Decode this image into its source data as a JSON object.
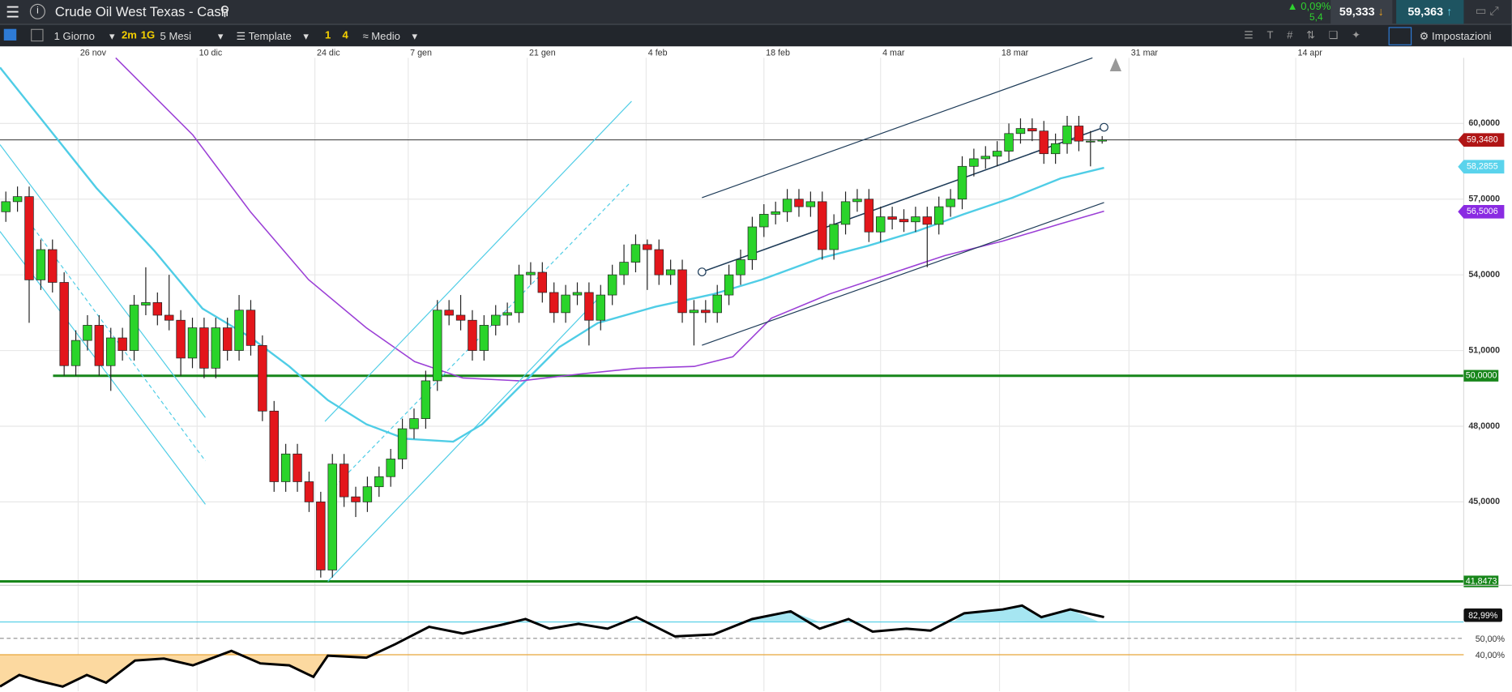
{
  "toolbar": {
    "title": "Crude Oil West Texas - Cash",
    "change": "0,09%",
    "change_points": "5,4",
    "sell": "59,333",
    "buy": "59,363",
    "interval": "1 Giorno",
    "btn_2m": "2m",
    "btn_1g": "1G",
    "range": "5 Mesi",
    "template": "Template",
    "btn_1": "1",
    "btn_4": "4",
    "style": "Medio",
    "settings": "Impostazioni"
  },
  "chart_data": {
    "type": "candlestick",
    "up_color": "#2ad42a",
    "down_color": "#e3161b",
    "xlim": [
      -0.5,
      125
    ],
    "xticks": [
      {
        "value": 6.2,
        "label": "26 nov"
      },
      {
        "value": 16.4,
        "label": "10 dic"
      },
      {
        "value": 26.5,
        "label": "24 dic"
      },
      {
        "value": 34.5,
        "label": "7 gen"
      },
      {
        "value": 44.7,
        "label": "21 gen"
      },
      {
        "value": 54.9,
        "label": "4 feb"
      },
      {
        "value": 65,
        "label": "18 feb"
      },
      {
        "value": 75,
        "label": "4 mar"
      },
      {
        "value": 85.2,
        "label": "18 mar"
      },
      {
        "value": 96.3,
        "label": "31 mar"
      },
      {
        "value": 110.6,
        "label": "14 apr"
      }
    ],
    "ylim": [
      41.77,
      62.6
    ],
    "yticks": [
      {
        "value": 60,
        "label": "60,0000"
      },
      {
        "value": 57,
        "label": "57,0000"
      },
      {
        "value": 54,
        "label": "54,0000"
      },
      {
        "value": 51,
        "label": "51,0000"
      },
      {
        "value": 48,
        "label": "48,0000"
      },
      {
        "value": 45,
        "label": "45,0000"
      }
    ],
    "open": [
      56.5,
      56.9,
      57.1,
      53.8,
      55.0,
      53.7,
      50.4,
      51.4,
      52.0,
      50.4,
      51.5,
      51.0,
      52.8,
      52.9,
      52.4,
      52.2,
      50.7,
      51.9,
      50.3,
      51.9,
      51.0,
      52.6,
      51.2,
      48.6,
      45.8,
      46.9,
      45.8,
      45.0,
      42.3,
      46.5,
      45.2,
      45.0,
      45.6,
      46.0,
      46.7,
      47.9,
      48.3,
      49.8,
      52.6,
      52.4,
      52.2,
      51.0,
      52.0,
      52.4,
      52.5,
      54.0,
      54.1,
      53.3,
      52.5,
      53.2,
      53.3,
      52.2,
      53.2,
      54.0,
      54.5,
      55.2,
      55.0,
      54.0,
      54.2,
      52.5,
      52.6,
      52.5,
      53.2,
      54.0,
      54.6,
      55.9,
      56.4,
      56.5,
      57.0,
      56.7,
      56.9,
      55.0,
      56.0,
      56.9,
      57.0,
      55.7,
      56.3,
      56.2,
      56.1,
      56.3,
      56.0,
      56.7,
      57.0,
      58.3,
      58.6,
      58.7,
      58.9,
      59.6,
      59.8,
      59.7,
      58.8,
      59.2,
      59.9,
      59.3,
      59.3
    ],
    "high": [
      57.3,
      57.5,
      57.5,
      55.4,
      55.4,
      54.1,
      51.8,
      52.4,
      52.4,
      51.9,
      51.9,
      53.2,
      54.3,
      53.3,
      54.0,
      52.6,
      52.3,
      52.3,
      52.3,
      52.3,
      53.2,
      53.0,
      51.6,
      49.0,
      47.3,
      47.3,
      46.2,
      45.4,
      46.9,
      46.9,
      45.6,
      46.0,
      46.4,
      47.1,
      48.3,
      48.7,
      50.2,
      53.0,
      53.0,
      53.2,
      52.6,
      52.4,
      52.8,
      52.9,
      54.4,
      54.5,
      54.5,
      53.7,
      53.6,
      53.7,
      53.7,
      53.6,
      54.4,
      55.2,
      55.6,
      55.4,
      55.4,
      54.6,
      54.6,
      53.0,
      53.0,
      53.6,
      54.4,
      55.0,
      56.3,
      56.8,
      56.9,
      57.4,
      57.4,
      57.3,
      57.3,
      56.4,
      57.3,
      57.4,
      57.4,
      56.7,
      56.7,
      56.6,
      56.7,
      56.7,
      57.1,
      57.4,
      58.7,
      59.0,
      59.1,
      59.3,
      60.0,
      60.2,
      60.2,
      60.1,
      59.6,
      60.3,
      60.3,
      59.7,
      59.5
    ],
    "low": [
      56.1,
      56.5,
      52.1,
      53.4,
      53.3,
      50.0,
      50.0,
      51.0,
      50.0,
      49.4,
      50.6,
      50.6,
      52.4,
      52.0,
      51.8,
      50.0,
      50.3,
      49.9,
      49.9,
      50.6,
      50.6,
      50.8,
      48.2,
      45.4,
      45.4,
      45.4,
      44.6,
      42.0,
      42.0,
      44.8,
      44.4,
      44.6,
      45.2,
      45.6,
      46.3,
      47.5,
      47.9,
      49.4,
      52.0,
      51.8,
      50.6,
      50.6,
      51.6,
      52.0,
      52.1,
      53.6,
      52.9,
      52.1,
      52.1,
      52.8,
      51.2,
      51.8,
      52.8,
      53.6,
      54.1,
      53.4,
      53.6,
      53.6,
      52.1,
      51.2,
      52.1,
      52.1,
      52.8,
      53.6,
      54.2,
      55.5,
      56.0,
      56.1,
      56.3,
      56.3,
      54.6,
      54.6,
      55.6,
      56.5,
      55.3,
      55.3,
      55.8,
      55.7,
      55.7,
      54.3,
      55.6,
      56.3,
      56.6,
      57.9,
      58.2,
      58.3,
      58.5,
      59.2,
      59.3,
      58.4,
      58.4,
      58.8,
      58.9,
      58.3,
      59.2
    ],
    "close": [
      56.9,
      57.1,
      53.8,
      55.0,
      53.7,
      50.4,
      51.4,
      52.0,
      50.4,
      51.5,
      51.0,
      52.8,
      52.9,
      52.4,
      52.2,
      50.7,
      51.9,
      50.3,
      51.9,
      51.0,
      52.6,
      51.2,
      48.6,
      45.8,
      46.9,
      45.8,
      45.0,
      42.3,
      46.5,
      45.2,
      45.0,
      45.6,
      46.0,
      46.7,
      47.9,
      48.3,
      49.8,
      52.6,
      52.4,
      52.2,
      51.0,
      52.0,
      52.4,
      52.5,
      54.0,
      54.1,
      53.3,
      52.5,
      53.2,
      53.3,
      52.2,
      53.2,
      54.0,
      54.5,
      55.2,
      55.0,
      54.0,
      54.2,
      52.5,
      52.6,
      52.5,
      53.2,
      54.0,
      54.6,
      55.9,
      56.4,
      56.5,
      57.0,
      56.7,
      56.9,
      55.0,
      56.0,
      56.9,
      57.0,
      55.7,
      56.3,
      56.2,
      56.1,
      56.3,
      56.0,
      56.7,
      57.0,
      58.3,
      58.6,
      58.7,
      58.9,
      59.6,
      59.8,
      59.7,
      58.8,
      59.2,
      59.9,
      59.3,
      59.3,
      59.35
    ],
    "price_labels": [
      {
        "value": 59.348,
        "label": "59,3480",
        "color": "#b01515"
      },
      {
        "value": 58.2855,
        "label": "58,2855",
        "color": "#5ad3ec"
      },
      {
        "value": 56.5006,
        "label": "56,5006",
        "color": "#8a2be2"
      }
    ],
    "levels": [
      {
        "value": 50,
        "label": "50,0000",
        "color": "#17861a"
      },
      {
        "value": 41.8473,
        "label": "41,8473",
        "color": "#17861a"
      }
    ],
    "rsi": {
      "last_label": "82,99%",
      "ticks": [
        "50,00%",
        "40,00%"
      ]
    }
  }
}
